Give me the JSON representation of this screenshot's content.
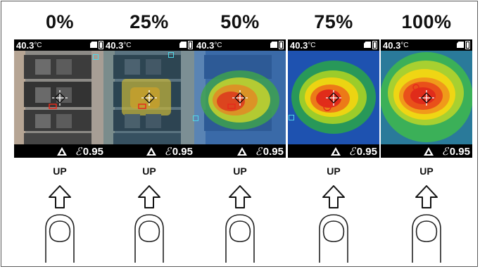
{
  "panels": [
    {
      "id": "0",
      "percent": "0%",
      "temp": "40.3",
      "unit": "°C",
      "emissivity": "0.95",
      "button": "UP",
      "blend": 0
    },
    {
      "id": "25",
      "percent": "25%",
      "temp": "40.3",
      "unit": "°C",
      "emissivity": "0.95",
      "button": "UP",
      "blend": 0.25
    },
    {
      "id": "50",
      "percent": "50%",
      "temp": "40.3",
      "unit": "°C",
      "emissivity": "0.95",
      "button": "UP",
      "blend": 0.5
    },
    {
      "id": "75",
      "percent": "75%",
      "temp": "40.3",
      "unit": "°C",
      "emissivity": "0.95",
      "button": "UP",
      "blend": 0.75
    },
    {
      "id": "100",
      "percent": "100%",
      "temp": "40.3",
      "unit": "°C",
      "emissivity": "0.95",
      "button": "UP",
      "blend": 1
    }
  ],
  "icons": {
    "sd_card": "sd-card-icon",
    "battery": "battery-icon",
    "warning": "warning-triangle-icon",
    "emissivity": "epsilon-icon",
    "arrow": "up-arrow-icon",
    "finger": "finger-press-icon",
    "crosshair": "crosshair-icon"
  },
  "colors": {
    "hot": "#e52b1b",
    "warm": "#f1e10a",
    "cool": "#2fb04a",
    "cold": "#1a4aa8",
    "marker": "#4fd8e8"
  }
}
